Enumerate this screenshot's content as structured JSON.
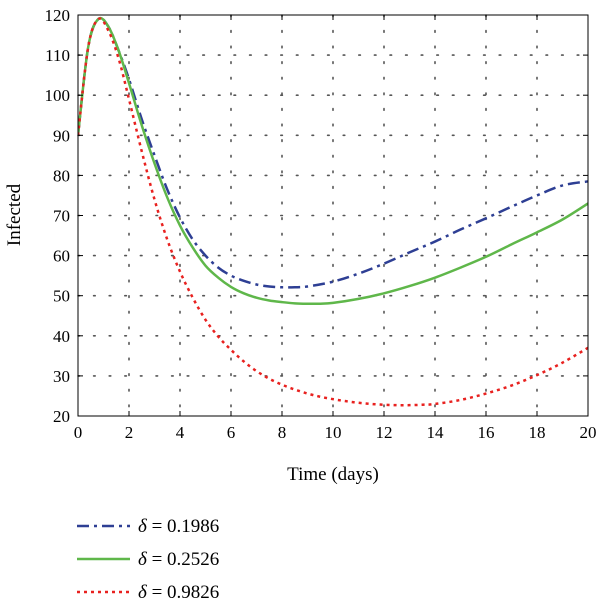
{
  "chart_data": {
    "type": "line",
    "xlabel": "Time (days)",
    "ylabel": "Infected",
    "xlim": [
      0,
      20
    ],
    "ylim": [
      20,
      120
    ],
    "xticks": [
      0,
      2,
      4,
      6,
      8,
      10,
      12,
      14,
      16,
      18,
      20
    ],
    "yticks": [
      20,
      30,
      40,
      50,
      60,
      70,
      80,
      90,
      100,
      110,
      120
    ],
    "grid": true,
    "legend_position": "bottom-left-outside",
    "series": [
      {
        "name": "δ = 0.1986",
        "symbol": "δ",
        "value_text": "= 0.1986",
        "color": "#2e3f94",
        "style": "dash-dot",
        "x": [
          0,
          0.4,
          0.8,
          1.2,
          1.6,
          2,
          2.5,
          3,
          3.5,
          4,
          4.5,
          5,
          5.5,
          6,
          6.5,
          7,
          7.5,
          8,
          8.5,
          9,
          10,
          11,
          12,
          13,
          14,
          15,
          16,
          17,
          18,
          19,
          20
        ],
        "y": [
          90,
          112,
          119,
          117,
          111,
          104,
          94,
          85,
          76.5,
          69.5,
          64,
          60,
          57,
          55,
          53.7,
          52.8,
          52.3,
          52.1,
          52.1,
          52.3,
          53.5,
          55.5,
          58,
          60.8,
          63.5,
          66.5,
          69.3,
          72.2,
          75,
          77.5,
          78.5
        ]
      },
      {
        "name": "δ = 0.2526",
        "symbol": "δ",
        "value_text": "= 0.2526",
        "color": "#5fb74a",
        "style": "solid",
        "x": [
          0,
          0.4,
          0.8,
          1.2,
          1.6,
          2,
          2.5,
          3,
          3.5,
          4,
          4.5,
          5,
          5.5,
          6,
          6.5,
          7,
          7.5,
          8,
          8.5,
          9,
          9.5,
          10,
          11,
          12,
          13,
          14,
          15,
          16,
          17,
          18,
          19,
          20
        ],
        "y": [
          90,
          112,
          119,
          117,
          111,
          103,
          92.5,
          83,
          74.5,
          67.5,
          62,
          57.5,
          54.5,
          52.2,
          50.6,
          49.5,
          48.8,
          48.4,
          48.1,
          48,
          48,
          48.2,
          49.2,
          50.6,
          52.4,
          54.5,
          57,
          59.7,
          62.8,
          65.8,
          69,
          73
        ]
      },
      {
        "name": "δ = 0.9826",
        "symbol": "δ",
        "value_text": "= 0.9826",
        "color": "#e8211f",
        "style": "dotted",
        "x": [
          0,
          0.4,
          0.8,
          1.2,
          1.6,
          2,
          2.5,
          3,
          3.5,
          4,
          4.5,
          5,
          5.5,
          6,
          6.5,
          7,
          7.5,
          8,
          8.5,
          9,
          9.5,
          10,
          10.5,
          11,
          11.5,
          12,
          12.5,
          13,
          13.5,
          14,
          15,
          16,
          17,
          18,
          19,
          20
        ],
        "y": [
          90,
          112,
          119,
          116,
          109,
          99,
          86,
          74,
          64,
          56,
          49.5,
          44,
          39.8,
          36.5,
          33.6,
          31.2,
          29.3,
          27.8,
          26.6,
          25.6,
          24.8,
          24.2,
          23.7,
          23.3,
          23,
          22.8,
          22.7,
          22.7,
          22.8,
          23,
          24,
          25.6,
          27.6,
          30.2,
          33.3,
          37
        ]
      }
    ]
  }
}
